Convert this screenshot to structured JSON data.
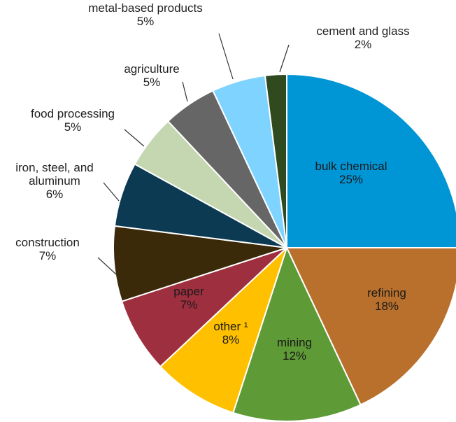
{
  "chart_data": {
    "type": "pie",
    "title": "",
    "slices": [
      {
        "label": "bulk chemical",
        "value_label": "25%",
        "value": 25,
        "color": "#0096D6",
        "text_color": "#1a1a1a"
      },
      {
        "label": "refining",
        "value_label": "18%",
        "value": 18,
        "color": "#B8702C",
        "text_color": "#1a1a1a"
      },
      {
        "label": "mining",
        "value_label": "12%",
        "value": 12,
        "color": "#5E9A36",
        "text_color": "#1a1a1a"
      },
      {
        "label": "other ¹",
        "value_label": "8%",
        "value": 8,
        "color": "#FFC000",
        "text_color": "#1a1a1a"
      },
      {
        "label": "paper",
        "value_label": "7%",
        "value": 7,
        "color": "#9E2F3F",
        "text_color": "#1a1a1a"
      },
      {
        "label": "construction",
        "value_label": "7%",
        "value": 7,
        "color": "#3B2A0A",
        "text_color": "#222222"
      },
      {
        "label": "iron, steel, and aluminum",
        "label_lines": [
          "iron, steel, and",
          "aluminum"
        ],
        "value_label": "6%",
        "value": 6,
        "color": "#0B3A52",
        "text_color": "#222222"
      },
      {
        "label": "food processing",
        "value_label": "5%",
        "value": 5,
        "color": "#C5D7B1",
        "text_color": "#222222"
      },
      {
        "label": "agriculture",
        "value_label": "5%",
        "value": 5,
        "color": "#666666",
        "text_color": "#222222"
      },
      {
        "label": "metal-based products",
        "value_label": "5%",
        "value": 5,
        "color": "#7FD3FF",
        "text_color": "#222222"
      },
      {
        "label": "cement and glass",
        "value_label": "2%",
        "value": 2,
        "color": "#2E4A1E",
        "text_color": "#222222"
      }
    ]
  }
}
